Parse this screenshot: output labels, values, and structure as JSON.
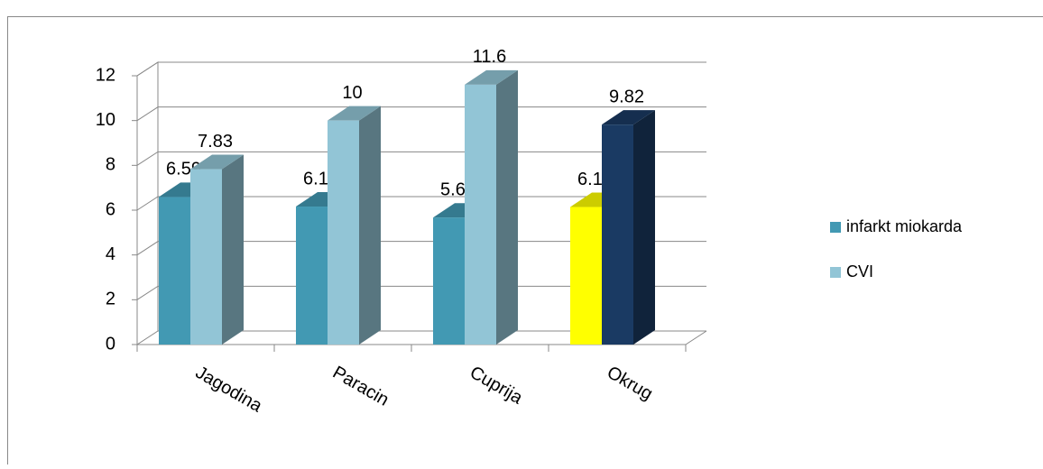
{
  "chart_data": {
    "type": "bar3d",
    "categories": [
      "Jagodina",
      "Paracin",
      "Cuprija",
      "Okrug"
    ],
    "series": [
      {
        "name": "infarkt miokarda",
        "color": "#4299b3",
        "colors": [
          "#4299b3",
          "#4299b3",
          "#4299b3",
          "#ffff00"
        ],
        "values": [
          6.59,
          6.16,
          5.67,
          6.14
        ]
      },
      {
        "name": "CVI",
        "color": "#92c5d6",
        "colors": [
          "#92c5d6",
          "#92c5d6",
          "#92c5d6",
          "#1a3a63"
        ],
        "values": [
          7.83,
          10,
          11.6,
          9.82
        ]
      }
    ],
    "ylim": [
      0,
      12
    ],
    "yticks": [
      0,
      2,
      4,
      6,
      8,
      10,
      12
    ],
    "grid": true,
    "legend": "right"
  }
}
